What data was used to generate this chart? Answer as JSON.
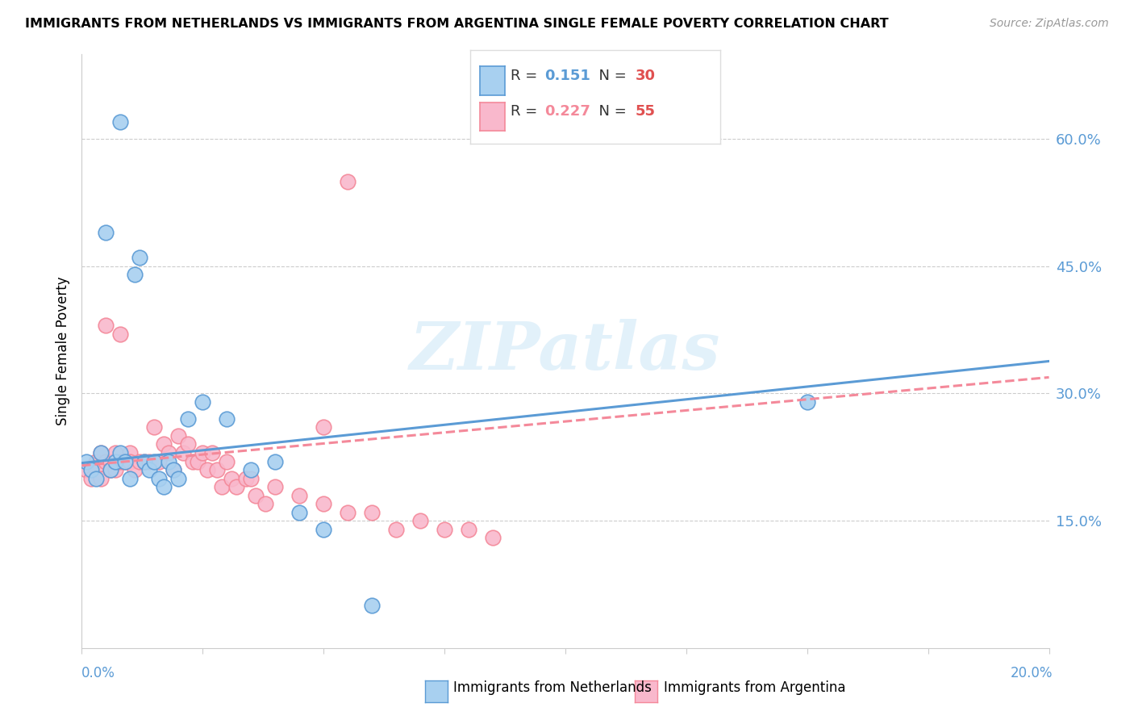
{
  "title": "IMMIGRANTS FROM NETHERLANDS VS IMMIGRANTS FROM ARGENTINA SINGLE FEMALE POVERTY CORRELATION CHART",
  "source": "Source: ZipAtlas.com",
  "ylabel": "Single Female Poverty",
  "right_yticks": [
    "60.0%",
    "45.0%",
    "30.0%",
    "15.0%"
  ],
  "right_ytick_vals": [
    0.6,
    0.45,
    0.3,
    0.15
  ],
  "legend1_R": "0.151",
  "legend1_N": "30",
  "legend2_R": "0.227",
  "legend2_N": "55",
  "color_netherlands": "#a8d0f0",
  "color_argentina": "#f9b8cc",
  "color_netherlands_line": "#5b9bd5",
  "color_argentina_line": "#f4899a",
  "watermark": "ZIPatlas",
  "xlim": [
    0.0,
    0.2
  ],
  "ylim": [
    0.0,
    0.7
  ],
  "netherlands_x": [
    0.001,
    0.002,
    0.003,
    0.004,
    0.005,
    0.006,
    0.007,
    0.008,
    0.009,
    0.01,
    0.011,
    0.012,
    0.013,
    0.014,
    0.015,
    0.016,
    0.017,
    0.018,
    0.019,
    0.02,
    0.022,
    0.025,
    0.03,
    0.035,
    0.04,
    0.045,
    0.05,
    0.06,
    0.15,
    0.008
  ],
  "netherlands_y": [
    0.22,
    0.21,
    0.2,
    0.23,
    0.49,
    0.21,
    0.22,
    0.23,
    0.22,
    0.2,
    0.44,
    0.46,
    0.22,
    0.21,
    0.22,
    0.2,
    0.19,
    0.22,
    0.21,
    0.2,
    0.27,
    0.29,
    0.27,
    0.21,
    0.22,
    0.16,
    0.14,
    0.05,
    0.29,
    0.62
  ],
  "argentina_x": [
    0.001,
    0.002,
    0.003,
    0.003,
    0.004,
    0.004,
    0.005,
    0.005,
    0.006,
    0.006,
    0.007,
    0.007,
    0.008,
    0.008,
    0.009,
    0.01,
    0.01,
    0.011,
    0.012,
    0.013,
    0.014,
    0.015,
    0.016,
    0.017,
    0.018,
    0.019,
    0.02,
    0.021,
    0.022,
    0.023,
    0.024,
    0.025,
    0.026,
    0.027,
    0.028,
    0.029,
    0.03,
    0.031,
    0.032,
    0.034,
    0.035,
    0.036,
    0.038,
    0.04,
    0.045,
    0.05,
    0.055,
    0.06,
    0.065,
    0.07,
    0.075,
    0.08,
    0.085,
    0.05,
    0.055
  ],
  "argentina_y": [
    0.21,
    0.2,
    0.22,
    0.21,
    0.23,
    0.2,
    0.38,
    0.22,
    0.22,
    0.21,
    0.23,
    0.21,
    0.37,
    0.22,
    0.22,
    0.23,
    0.22,
    0.21,
    0.22,
    0.22,
    0.22,
    0.26,
    0.22,
    0.24,
    0.23,
    0.21,
    0.25,
    0.23,
    0.24,
    0.22,
    0.22,
    0.23,
    0.21,
    0.23,
    0.21,
    0.19,
    0.22,
    0.2,
    0.19,
    0.2,
    0.2,
    0.18,
    0.17,
    0.19,
    0.18,
    0.17,
    0.16,
    0.16,
    0.14,
    0.15,
    0.14,
    0.14,
    0.13,
    0.26,
    0.55
  ]
}
